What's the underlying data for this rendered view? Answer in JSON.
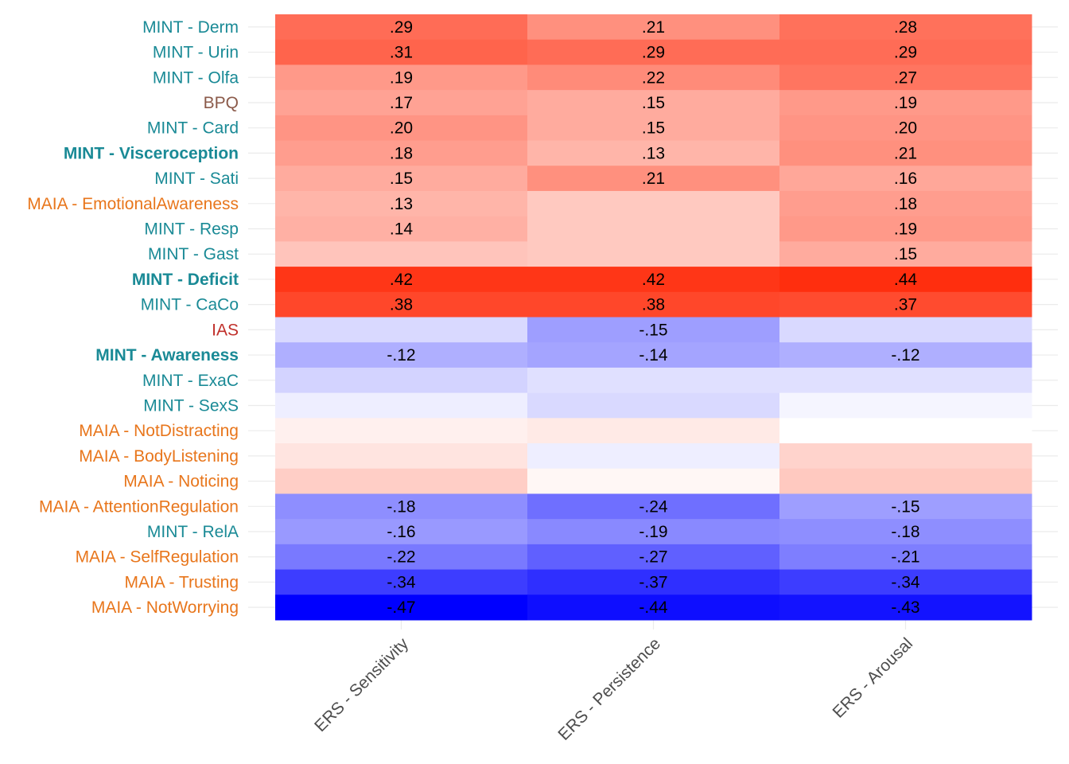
{
  "chart_data": {
    "type": "heatmap",
    "title": "",
    "xlabel": "",
    "ylabel": "",
    "columns": [
      "ERS - Sensitivity",
      "ERS - Persistence",
      "ERS - Arousal"
    ],
    "rows": [
      {
        "label": "MINT - Derm",
        "group": "MINT",
        "bold": false,
        "values": [
          0.29,
          0.21,
          0.28
        ],
        "labels": [
          ".29",
          ".21",
          ".28"
        ]
      },
      {
        "label": "MINT - Urin",
        "group": "MINT",
        "bold": false,
        "values": [
          0.31,
          0.29,
          0.29
        ],
        "labels": [
          ".31",
          ".29",
          ".29"
        ]
      },
      {
        "label": "MINT - Olfa",
        "group": "MINT",
        "bold": false,
        "values": [
          0.19,
          0.22,
          0.27
        ],
        "labels": [
          ".19",
          ".22",
          ".27"
        ]
      },
      {
        "label": "BPQ",
        "group": "BPQ",
        "bold": false,
        "values": [
          0.17,
          0.15,
          0.19
        ],
        "labels": [
          ".17",
          ".15",
          ".19"
        ]
      },
      {
        "label": "MINT - Card",
        "group": "MINT",
        "bold": false,
        "values": [
          0.2,
          0.15,
          0.2
        ],
        "labels": [
          ".20",
          ".15",
          ".20"
        ]
      },
      {
        "label": "MINT - Visceroception",
        "group": "MINT",
        "bold": true,
        "values": [
          0.18,
          0.13,
          0.21
        ],
        "labels": [
          ".18",
          ".13",
          ".21"
        ]
      },
      {
        "label": "MINT - Sati",
        "group": "MINT",
        "bold": false,
        "values": [
          0.15,
          0.21,
          0.16
        ],
        "labels": [
          ".15",
          ".21",
          ".16"
        ]
      },
      {
        "label": "MAIA - EmotionalAwareness",
        "group": "MAIA",
        "bold": false,
        "values": [
          0.13,
          0.09,
          0.18
        ],
        "labels": [
          ".13",
          "",
          ".18"
        ]
      },
      {
        "label": "MINT - Resp",
        "group": "MINT",
        "bold": false,
        "values": [
          0.14,
          0.09,
          0.19
        ],
        "labels": [
          ".14",
          "",
          ".19"
        ]
      },
      {
        "label": "MINT - Gast",
        "group": "MINT",
        "bold": false,
        "values": [
          0.1,
          0.09,
          0.15
        ],
        "labels": [
          "",
          "",
          ".15"
        ]
      },
      {
        "label": "MINT - Deficit",
        "group": "MINT",
        "bold": true,
        "values": [
          0.42,
          0.42,
          0.44
        ],
        "labels": [
          ".42",
          ".42",
          ".44"
        ]
      },
      {
        "label": "MINT - CaCo",
        "group": "MINT",
        "bold": false,
        "values": [
          0.38,
          0.38,
          0.37
        ],
        "labels": [
          ".38",
          ".38",
          ".37"
        ]
      },
      {
        "label": "IAS",
        "group": "IAS",
        "bold": false,
        "values": [
          -0.05,
          -0.15,
          -0.05
        ],
        "labels": [
          "",
          "-.15",
          ""
        ]
      },
      {
        "label": "MINT - Awareness",
        "group": "MINT",
        "bold": true,
        "values": [
          -0.12,
          -0.14,
          -0.12
        ],
        "labels": [
          "-.12",
          "-.14",
          "-.12"
        ]
      },
      {
        "label": "MINT - ExaC",
        "group": "MINT",
        "bold": false,
        "values": [
          -0.06,
          -0.04,
          -0.04
        ],
        "labels": [
          "",
          "",
          ""
        ]
      },
      {
        "label": "MINT - SexS",
        "group": "MINT",
        "bold": false,
        "values": [
          -0.02,
          -0.05,
          -0.01
        ],
        "labels": [
          "",
          "",
          ""
        ]
      },
      {
        "label": "MAIA - NotDistracting",
        "group": "MAIA",
        "bold": false,
        "values": [
          0.02,
          0.03,
          0.0
        ],
        "labels": [
          "",
          "",
          ""
        ]
      },
      {
        "label": "MAIA - BodyListening",
        "group": "MAIA",
        "bold": false,
        "values": [
          0.04,
          -0.02,
          0.07
        ],
        "labels": [
          "",
          "",
          ""
        ]
      },
      {
        "label": "MAIA - Noticing",
        "group": "MAIA",
        "bold": false,
        "values": [
          0.08,
          0.01,
          0.09
        ],
        "labels": [
          "",
          "",
          ""
        ]
      },
      {
        "label": "MAIA - AttentionRegulation",
        "group": "MAIA",
        "bold": false,
        "values": [
          -0.18,
          -0.24,
          -0.15
        ],
        "labels": [
          "-.18",
          "-.24",
          "-.15"
        ]
      },
      {
        "label": "MINT - RelA",
        "group": "MINT",
        "bold": false,
        "values": [
          -0.16,
          -0.19,
          -0.18
        ],
        "labels": [
          "-.16",
          "-.19",
          "-.18"
        ]
      },
      {
        "label": "MAIA - SelfRegulation",
        "group": "MAIA",
        "bold": false,
        "values": [
          -0.22,
          -0.27,
          -0.21
        ],
        "labels": [
          "-.22",
          "-.27",
          "-.21"
        ]
      },
      {
        "label": "MAIA - Trusting",
        "group": "MAIA",
        "bold": false,
        "values": [
          -0.34,
          -0.37,
          -0.34
        ],
        "labels": [
          "-.34",
          "-.37",
          "-.34"
        ]
      },
      {
        "label": "MAIA - NotWorrying",
        "group": "MAIA",
        "bold": false,
        "values": [
          -0.47,
          -0.44,
          -0.43
        ],
        "labels": [
          "-.47",
          "-.44",
          "-.43"
        ]
      }
    ],
    "color_scale": {
      "low": "#0000ff",
      "mid": "#ffffff",
      "high": "#ff2200",
      "limits": [
        -0.47,
        0.47
      ]
    },
    "group_colors": {
      "MINT": "#1a8a96",
      "MAIA": "#e8761c",
      "BPQ": "#8b5a4a",
      "IAS": "#c0302b"
    },
    "grid": true,
    "legend": "none"
  }
}
